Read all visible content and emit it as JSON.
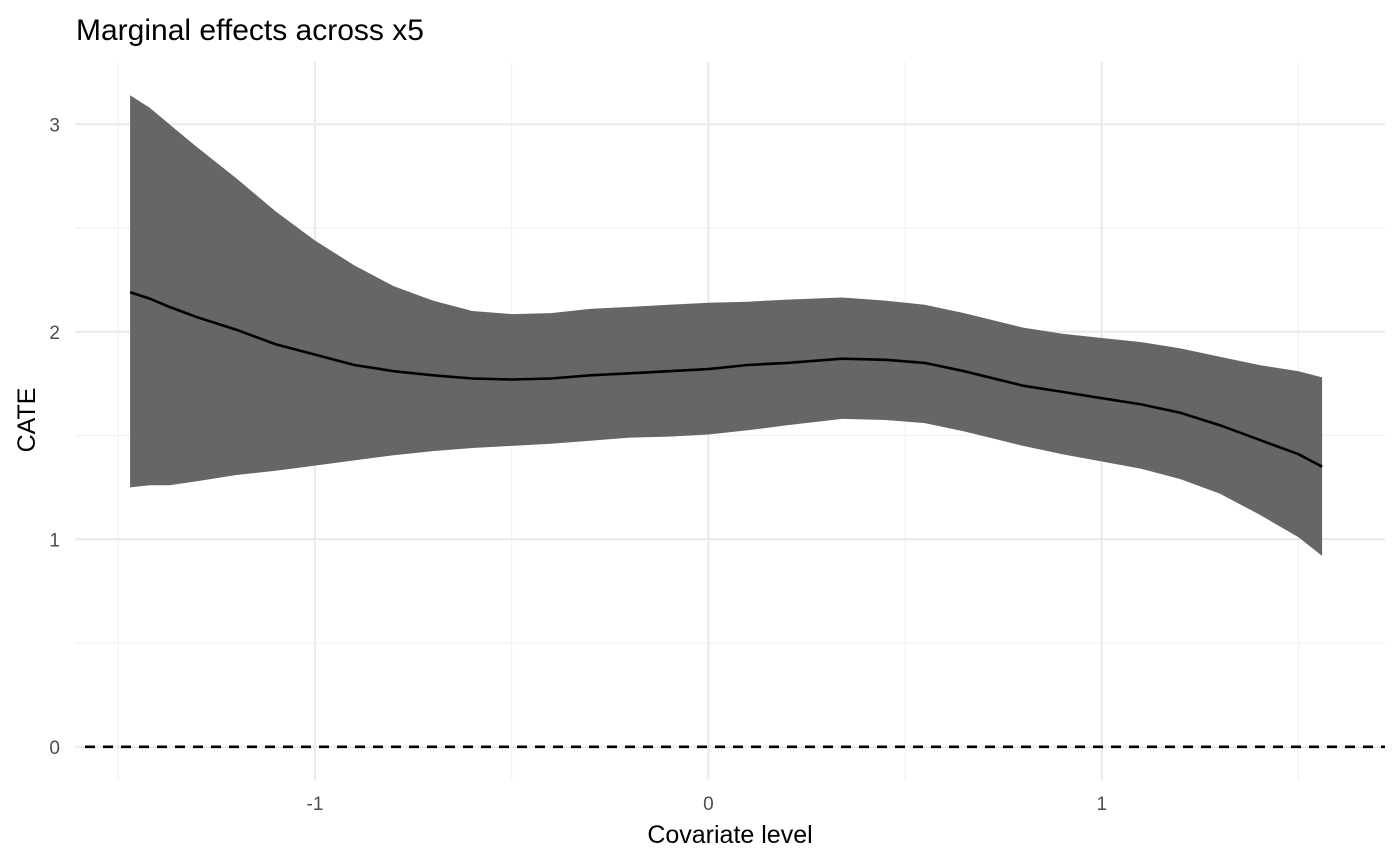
{
  "chart_data": {
    "type": "line",
    "title": "Marginal effects across x5",
    "xlabel": "Covariate level",
    "ylabel": "CATE",
    "xlim": [
      -1.61,
      1.72
    ],
    "ylim": [
      -0.16,
      3.3
    ],
    "x_ticks": [
      -1,
      0,
      1
    ],
    "x_tick_labels": [
      "-1",
      "0",
      "1"
    ],
    "y_ticks": [
      0,
      1,
      2,
      3
    ],
    "y_tick_labels": [
      "0",
      "1",
      "2",
      "3"
    ],
    "grid": true,
    "reference_line": {
      "y": 0,
      "style": "dashed"
    },
    "band_color": "#666666",
    "line_color": "#000000",
    "x": [
      -1.47,
      -1.42,
      -1.37,
      -1.3,
      -1.2,
      -1.1,
      -1.0,
      -0.9,
      -0.8,
      -0.7,
      -0.6,
      -0.5,
      -0.4,
      -0.3,
      -0.2,
      -0.1,
      0.0,
      0.1,
      0.2,
      0.34,
      0.45,
      0.55,
      0.65,
      0.8,
      0.9,
      1.0,
      1.1,
      1.2,
      1.3,
      1.4,
      1.5,
      1.56
    ],
    "estimate": [
      2.19,
      2.16,
      2.12,
      2.07,
      2.01,
      1.94,
      1.89,
      1.84,
      1.81,
      1.79,
      1.775,
      1.77,
      1.775,
      1.79,
      1.8,
      1.81,
      1.82,
      1.84,
      1.85,
      1.87,
      1.865,
      1.85,
      1.81,
      1.74,
      1.71,
      1.68,
      1.65,
      1.61,
      1.55,
      1.48,
      1.41,
      1.35
    ],
    "upper": [
      3.14,
      3.08,
      3.0,
      2.89,
      2.74,
      2.58,
      2.44,
      2.32,
      2.22,
      2.15,
      2.1,
      2.085,
      2.09,
      2.11,
      2.12,
      2.13,
      2.14,
      2.145,
      2.155,
      2.165,
      2.15,
      2.13,
      2.09,
      2.02,
      1.99,
      1.97,
      1.95,
      1.92,
      1.88,
      1.84,
      1.81,
      1.78
    ],
    "lower": [
      1.25,
      1.26,
      1.26,
      1.28,
      1.31,
      1.33,
      1.355,
      1.38,
      1.405,
      1.425,
      1.44,
      1.45,
      1.46,
      1.475,
      1.49,
      1.495,
      1.505,
      1.525,
      1.55,
      1.58,
      1.575,
      1.56,
      1.52,
      1.45,
      1.41,
      1.375,
      1.34,
      1.29,
      1.22,
      1.12,
      1.01,
      0.92
    ]
  }
}
